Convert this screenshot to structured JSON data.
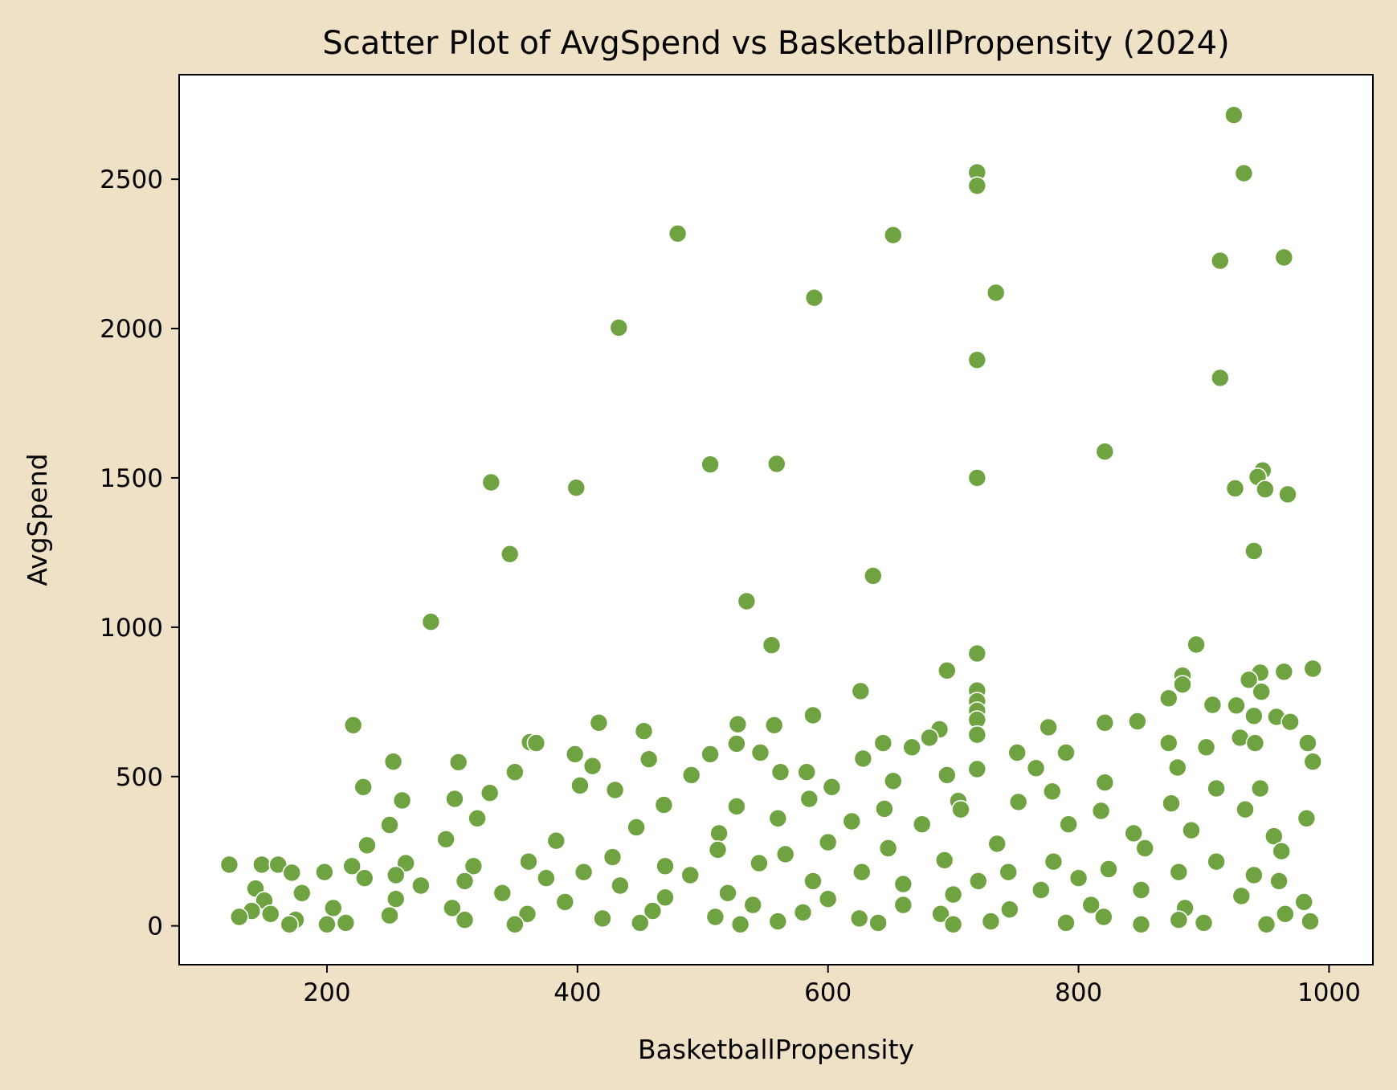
{
  "chart_data": {
    "type": "scatter",
    "title": "Scatter Plot of AvgSpend vs BasketballPropensity (2024)",
    "xlabel": "BasketballPropensity",
    "ylabel": "AvgSpend",
    "xlim": [
      82,
      1035
    ],
    "ylim": [
      -130,
      2850
    ],
    "xticks": [
      200,
      400,
      600,
      800,
      1000
    ],
    "yticks": [
      0,
      500,
      1000,
      1500,
      2000,
      2500
    ],
    "grid": false,
    "legend": "none",
    "colors": {
      "point": "#6fa241",
      "point_edge": "#ffffff",
      "plot_bg": "#ffffff",
      "figure_bg": "#efe1c6"
    },
    "series": [
      {
        "points": [
          [
            924,
            2715
          ],
          [
            932,
            2520
          ],
          [
            719,
            2523
          ],
          [
            719,
            2478
          ],
          [
            480,
            2318
          ],
          [
            652,
            2313
          ],
          [
            964,
            2238
          ],
          [
            913,
            2227
          ],
          [
            734,
            2120
          ],
          [
            589,
            2103
          ],
          [
            433,
            2003
          ],
          [
            719,
            1895
          ],
          [
            913,
            1835
          ],
          [
            821,
            1588
          ],
          [
            506,
            1545
          ],
          [
            559,
            1547
          ],
          [
            947,
            1525
          ],
          [
            943,
            1503
          ],
          [
            719,
            1500
          ],
          [
            331,
            1485
          ],
          [
            399,
            1467
          ],
          [
            925,
            1465
          ],
          [
            949,
            1462
          ],
          [
            967,
            1445
          ],
          [
            940,
            1255
          ],
          [
            346,
            1245
          ],
          [
            636,
            1172
          ],
          [
            535,
            1087
          ],
          [
            283,
            1018
          ],
          [
            894,
            942
          ],
          [
            555,
            940
          ],
          [
            719,
            912
          ],
          [
            987,
            861
          ],
          [
            695,
            855
          ],
          [
            964,
            851
          ],
          [
            945,
            848
          ],
          [
            883,
            838
          ],
          [
            936,
            824
          ],
          [
            883,
            808
          ],
          [
            719,
            788
          ],
          [
            626,
            786
          ],
          [
            946,
            784
          ],
          [
            872,
            762
          ],
          [
            719,
            752
          ],
          [
            907,
            740
          ],
          [
            926,
            738
          ],
          [
            719,
            720
          ],
          [
            588,
            705
          ],
          [
            940,
            703
          ],
          [
            958,
            700
          ],
          [
            719,
            690
          ],
          [
            969,
            683
          ],
          [
            417,
            680
          ],
          [
            821,
            680
          ],
          [
            847,
            685
          ],
          [
            557,
            672
          ],
          [
            528,
            675
          ],
          [
            221,
            672
          ],
          [
            776,
            665
          ],
          [
            689,
            658
          ],
          [
            453,
            652
          ],
          [
            719,
            640
          ],
          [
            681,
            630
          ],
          [
            929,
            630
          ],
          [
            362,
            615
          ],
          [
            367,
            612
          ],
          [
            644,
            612
          ],
          [
            941,
            612
          ],
          [
            983,
            612
          ],
          [
            872,
            612
          ],
          [
            667,
            598
          ],
          [
            902,
            598
          ],
          [
            527,
            610
          ],
          [
            751,
            580
          ],
          [
            546,
            580
          ],
          [
            790,
            580
          ],
          [
            398,
            575
          ],
          [
            506,
            575
          ],
          [
            457,
            558
          ],
          [
            628,
            560
          ],
          [
            253,
            550
          ],
          [
            305,
            548
          ],
          [
            987,
            550
          ],
          [
            412,
            535
          ],
          [
            766,
            528
          ],
          [
            719,
            525
          ],
          [
            350,
            515
          ],
          [
            562,
            515
          ],
          [
            583,
            515
          ],
          [
            879,
            530
          ],
          [
            695,
            505
          ],
          [
            491,
            505
          ],
          [
            652,
            485
          ],
          [
            821,
            480
          ],
          [
            229,
            465
          ],
          [
            603,
            465
          ],
          [
            402,
            470
          ],
          [
            430,
            455
          ],
          [
            910,
            460
          ],
          [
            945,
            460
          ],
          [
            330,
            445
          ],
          [
            585,
            425
          ],
          [
            260,
            420
          ],
          [
            779,
            450
          ],
          [
            752,
            415
          ],
          [
            645,
            392
          ],
          [
            302,
            425
          ],
          [
            704,
            418
          ],
          [
            469,
            405
          ],
          [
            874,
            410
          ],
          [
            982,
            360
          ],
          [
            250,
            338
          ],
          [
            560,
            360
          ],
          [
            818,
            385
          ],
          [
            527,
            400
          ],
          [
            933,
            390
          ],
          [
            706,
            390
          ],
          [
            619,
            350
          ],
          [
            320,
            360
          ],
          [
            447,
            330
          ],
          [
            513,
            310
          ],
          [
            792,
            340
          ],
          [
            675,
            340
          ],
          [
            383,
            285
          ],
          [
            844,
            310
          ],
          [
            890,
            320
          ],
          [
            956,
            300
          ],
          [
            232,
            270
          ],
          [
            428,
            230
          ],
          [
            600,
            280
          ],
          [
            735,
            275
          ],
          [
            295,
            290
          ],
          [
            512,
            255
          ],
          [
            853,
            260
          ],
          [
            648,
            260
          ],
          [
            566,
            240
          ],
          [
            962,
            250
          ],
          [
            361,
            215
          ],
          [
            693,
            220
          ],
          [
            780,
            215
          ],
          [
            470,
            200
          ],
          [
            910,
            215
          ],
          [
            317,
            200
          ],
          [
            263,
            210
          ],
          [
            148,
            205
          ],
          [
            122,
            205
          ],
          [
            161,
            205
          ],
          [
            220,
            200
          ],
          [
            545,
            210
          ],
          [
            824,
            190
          ],
          [
            405,
            180
          ],
          [
            627,
            180
          ],
          [
            744,
            180
          ],
          [
            198,
            180
          ],
          [
            172,
            178
          ],
          [
            255,
            170
          ],
          [
            880,
            180
          ],
          [
            940,
            170
          ],
          [
            490,
            170
          ],
          [
            310,
            150
          ],
          [
            588,
            150
          ],
          [
            720,
            150
          ],
          [
            230,
            160
          ],
          [
            375,
            160
          ],
          [
            800,
            160
          ],
          [
            960,
            150
          ],
          [
            275,
            135
          ],
          [
            660,
            140
          ],
          [
            434,
            135
          ],
          [
            143,
            125
          ],
          [
            180,
            110
          ],
          [
            520,
            110
          ],
          [
            770,
            120
          ],
          [
            850,
            120
          ],
          [
            700,
            105
          ],
          [
            340,
            110
          ],
          [
            930,
            100
          ],
          [
            600,
            90
          ],
          [
            255,
            90
          ],
          [
            470,
            95
          ],
          [
            150,
            85
          ],
          [
            390,
            80
          ],
          [
            540,
            70
          ],
          [
            810,
            70
          ],
          [
            980,
            80
          ],
          [
            660,
            70
          ],
          [
            300,
            60
          ],
          [
            205,
            60
          ],
          [
            745,
            55
          ],
          [
            885,
            60
          ],
          [
            140,
            50
          ],
          [
            460,
            50
          ],
          [
            580,
            45
          ],
          [
            360,
            40
          ],
          [
            965,
            40
          ],
          [
            690,
            40
          ],
          [
            155,
            40
          ],
          [
            250,
            35
          ],
          [
            820,
            30
          ],
          [
            510,
            30
          ],
          [
            130,
            30
          ],
          [
            420,
            25
          ],
          [
            625,
            25
          ],
          [
            880,
            20
          ],
          [
            175,
            20
          ],
          [
            310,
            20
          ],
          [
            730,
            15
          ],
          [
            560,
            15
          ],
          [
            985,
            15
          ],
          [
            215,
            10
          ],
          [
            450,
            10
          ],
          [
            640,
            10
          ],
          [
            790,
            10
          ],
          [
            900,
            10
          ],
          [
            170,
            5
          ],
          [
            200,
            5
          ],
          [
            350,
            5
          ],
          [
            530,
            5
          ],
          [
            700,
            5
          ],
          [
            850,
            5
          ],
          [
            950,
            5
          ]
        ]
      }
    ]
  }
}
